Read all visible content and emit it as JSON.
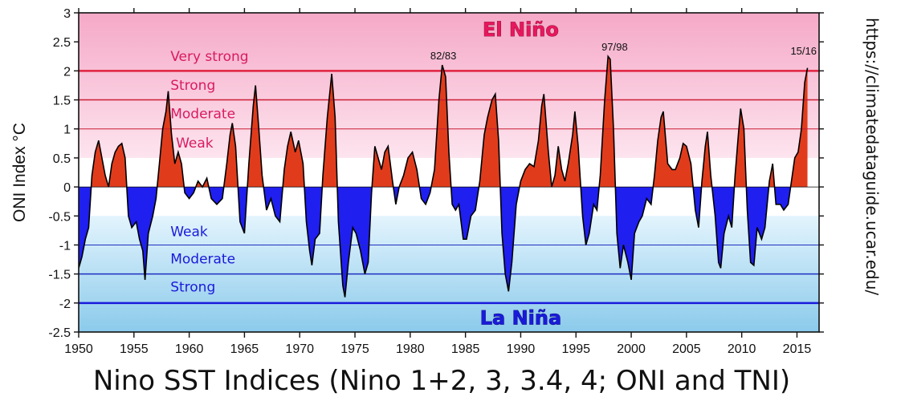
{
  "chart_data": {
    "type": "area",
    "title": "Nino SST Indices (Nino 1+2, 3, 3.4, 4; ONI and TNI)",
    "xlabel": "",
    "ylabel": "ONI Index  °C",
    "xlim": [
      1950,
      2017
    ],
    "ylim": [
      -2.5,
      3
    ],
    "xticks": [
      1950,
      1955,
      1960,
      1965,
      1970,
      1975,
      1980,
      1985,
      1990,
      1995,
      2000,
      2005,
      2010,
      2015
    ],
    "yticks": [
      3,
      2.5,
      2,
      1.5,
      1,
      0.5,
      0,
      -0.5,
      -1,
      -1.5,
      -2,
      -2.5
    ],
    "ytick_labels": [
      "3",
      "2.5",
      "2",
      "1.5",
      "1",
      "0.5",
      "0",
      "-0.5",
      "-1",
      "-1.5",
      "-2",
      "-2.5"
    ],
    "series": [
      {
        "name": "ONI",
        "positive_color": "#e03c1c",
        "negative_color": "#1f1ff0",
        "points": [
          [
            1950.0,
            -1.4
          ],
          [
            1950.3,
            -1.2
          ],
          [
            1950.6,
            -0.9
          ],
          [
            1950.9,
            -0.7
          ],
          [
            1951.2,
            0.2
          ],
          [
            1951.5,
            0.6
          ],
          [
            1951.8,
            0.8
          ],
          [
            1952.1,
            0.5
          ],
          [
            1952.4,
            0.2
          ],
          [
            1952.7,
            0.0
          ],
          [
            1953.0,
            0.4
          ],
          [
            1953.3,
            0.6
          ],
          [
            1953.6,
            0.7
          ],
          [
            1953.9,
            0.75
          ],
          [
            1954.2,
            0.5
          ],
          [
            1954.5,
            -0.5
          ],
          [
            1954.8,
            -0.7
          ],
          [
            1955.2,
            -0.6
          ],
          [
            1955.5,
            -0.9
          ],
          [
            1955.8,
            -1.1
          ],
          [
            1956.0,
            -1.6
          ],
          [
            1956.3,
            -0.8
          ],
          [
            1956.7,
            -0.5
          ],
          [
            1957.0,
            -0.2
          ],
          [
            1957.3,
            0.4
          ],
          [
            1957.6,
            1.0
          ],
          [
            1957.9,
            1.3
          ],
          [
            1958.1,
            1.65
          ],
          [
            1958.4,
            0.9
          ],
          [
            1958.7,
            0.4
          ],
          [
            1959.0,
            0.6
          ],
          [
            1959.3,
            0.4
          ],
          [
            1959.6,
            -0.1
          ],
          [
            1960.0,
            -0.2
          ],
          [
            1960.4,
            -0.1
          ],
          [
            1960.8,
            0.1
          ],
          [
            1961.2,
            0.0
          ],
          [
            1961.6,
            0.15
          ],
          [
            1962.0,
            -0.2
          ],
          [
            1962.5,
            -0.3
          ],
          [
            1963.0,
            -0.2
          ],
          [
            1963.4,
            0.4
          ],
          [
            1963.7,
            0.9
          ],
          [
            1963.9,
            1.1
          ],
          [
            1964.2,
            0.7
          ],
          [
            1964.6,
            -0.6
          ],
          [
            1965.0,
            -0.8
          ],
          [
            1965.4,
            0.4
          ],
          [
            1965.8,
            1.4
          ],
          [
            1966.0,
            1.75
          ],
          [
            1966.3,
            1.0
          ],
          [
            1966.6,
            0.2
          ],
          [
            1967.0,
            -0.4
          ],
          [
            1967.4,
            -0.2
          ],
          [
            1967.8,
            -0.5
          ],
          [
            1968.2,
            -0.6
          ],
          [
            1968.6,
            0.3
          ],
          [
            1968.9,
            0.7
          ],
          [
            1969.2,
            0.95
          ],
          [
            1969.6,
            0.6
          ],
          [
            1969.9,
            0.8
          ],
          [
            1970.3,
            0.4
          ],
          [
            1970.6,
            -0.6
          ],
          [
            1970.9,
            -1.1
          ],
          [
            1971.1,
            -1.35
          ],
          [
            1971.4,
            -0.9
          ],
          [
            1971.8,
            -0.8
          ],
          [
            1972.1,
            0.2
          ],
          [
            1972.5,
            1.2
          ],
          [
            1972.9,
            1.95
          ],
          [
            1973.2,
            1.2
          ],
          [
            1973.5,
            -0.6
          ],
          [
            1973.9,
            -1.7
          ],
          [
            1974.1,
            -1.9
          ],
          [
            1974.4,
            -1.3
          ],
          [
            1974.8,
            -0.7
          ],
          [
            1975.1,
            -0.8
          ],
          [
            1975.5,
            -1.1
          ],
          [
            1975.9,
            -1.5
          ],
          [
            1976.2,
            -1.3
          ],
          [
            1976.5,
            -0.1
          ],
          [
            1976.8,
            0.7
          ],
          [
            1977.1,
            0.5
          ],
          [
            1977.4,
            0.3
          ],
          [
            1977.7,
            0.6
          ],
          [
            1978.0,
            0.7
          ],
          [
            1978.4,
            0.1
          ],
          [
            1978.7,
            -0.3
          ],
          [
            1979.0,
            0.0
          ],
          [
            1979.4,
            0.2
          ],
          [
            1979.8,
            0.5
          ],
          [
            1980.2,
            0.6
          ],
          [
            1980.6,
            0.3
          ],
          [
            1981.0,
            -0.2
          ],
          [
            1981.4,
            -0.3
          ],
          [
            1981.8,
            -0.1
          ],
          [
            1982.2,
            0.3
          ],
          [
            1982.6,
            1.5
          ],
          [
            1982.9,
            2.1
          ],
          [
            1983.2,
            1.9
          ],
          [
            1983.5,
            0.6
          ],
          [
            1983.8,
            -0.3
          ],
          [
            1984.1,
            -0.4
          ],
          [
            1984.4,
            -0.3
          ],
          [
            1984.8,
            -0.9
          ],
          [
            1985.1,
            -0.9
          ],
          [
            1985.5,
            -0.5
          ],
          [
            1985.9,
            -0.4
          ],
          [
            1986.3,
            0.1
          ],
          [
            1986.7,
            0.9
          ],
          [
            1987.0,
            1.2
          ],
          [
            1987.4,
            1.5
          ],
          [
            1987.7,
            1.6
          ],
          [
            1988.0,
            0.8
          ],
          [
            1988.3,
            -0.8
          ],
          [
            1988.6,
            -1.5
          ],
          [
            1988.9,
            -1.8
          ],
          [
            1989.2,
            -1.3
          ],
          [
            1989.6,
            -0.3
          ],
          [
            1990.0,
            0.1
          ],
          [
            1990.4,
            0.3
          ],
          [
            1990.8,
            0.4
          ],
          [
            1991.2,
            0.35
          ],
          [
            1991.6,
            0.8
          ],
          [
            1991.9,
            1.4
          ],
          [
            1992.1,
            1.6
          ],
          [
            1992.5,
            0.6
          ],
          [
            1992.8,
            0.0
          ],
          [
            1993.1,
            0.2
          ],
          [
            1993.4,
            0.7
          ],
          [
            1993.7,
            0.3
          ],
          [
            1994.0,
            0.1
          ],
          [
            1994.3,
            0.4
          ],
          [
            1994.7,
            0.9
          ],
          [
            1994.9,
            1.3
          ],
          [
            1995.2,
            0.7
          ],
          [
            1995.6,
            -0.5
          ],
          [
            1995.9,
            -1.0
          ],
          [
            1996.2,
            -0.8
          ],
          [
            1996.6,
            -0.3
          ],
          [
            1996.9,
            -0.4
          ],
          [
            1997.2,
            0.2
          ],
          [
            1997.6,
            1.5
          ],
          [
            1997.9,
            2.25
          ],
          [
            1998.1,
            2.2
          ],
          [
            1998.4,
            1.0
          ],
          [
            1998.7,
            -0.8
          ],
          [
            1999.0,
            -1.4
          ],
          [
            1999.3,
            -1.0
          ],
          [
            1999.7,
            -1.3
          ],
          [
            2000.0,
            -1.6
          ],
          [
            2000.3,
            -0.8
          ],
          [
            2000.7,
            -0.6
          ],
          [
            2001.0,
            -0.5
          ],
          [
            2001.4,
            -0.2
          ],
          [
            2001.8,
            -0.3
          ],
          [
            2002.1,
            0.2
          ],
          [
            2002.4,
            0.8
          ],
          [
            2002.7,
            1.2
          ],
          [
            2002.9,
            1.3
          ],
          [
            2003.3,
            0.4
          ],
          [
            2003.7,
            0.3
          ],
          [
            2004.0,
            0.3
          ],
          [
            2004.4,
            0.5
          ],
          [
            2004.7,
            0.75
          ],
          [
            2005.0,
            0.7
          ],
          [
            2005.4,
            0.4
          ],
          [
            2005.8,
            -0.4
          ],
          [
            2006.1,
            -0.7
          ],
          [
            2006.4,
            0.1
          ],
          [
            2006.7,
            0.7
          ],
          [
            2006.9,
            0.95
          ],
          [
            2007.2,
            0.2
          ],
          [
            2007.6,
            -0.5
          ],
          [
            2007.9,
            -1.3
          ],
          [
            2008.1,
            -1.4
          ],
          [
            2008.4,
            -0.8
          ],
          [
            2008.8,
            -0.5
          ],
          [
            2009.1,
            -0.7
          ],
          [
            2009.4,
            0.2
          ],
          [
            2009.7,
            0.9
          ],
          [
            2009.9,
            1.35
          ],
          [
            2010.2,
            1.0
          ],
          [
            2010.5,
            -0.4
          ],
          [
            2010.8,
            -1.3
          ],
          [
            2011.1,
            -1.35
          ],
          [
            2011.4,
            -0.7
          ],
          [
            2011.8,
            -0.9
          ],
          [
            2012.1,
            -0.7
          ],
          [
            2012.5,
            0.1
          ],
          [
            2012.8,
            0.4
          ],
          [
            2013.1,
            -0.3
          ],
          [
            2013.5,
            -0.3
          ],
          [
            2013.8,
            -0.4
          ],
          [
            2014.2,
            -0.3
          ],
          [
            2014.5,
            0.1
          ],
          [
            2014.8,
            0.5
          ],
          [
            2015.1,
            0.6
          ],
          [
            2015.4,
            1.0
          ],
          [
            2015.7,
            1.8
          ],
          [
            2015.95,
            2.05
          ]
        ]
      }
    ],
    "thresholds": [
      {
        "value": 2.0,
        "color": "#e0213f",
        "width": 2.5
      },
      {
        "value": 1.5,
        "color": "#c91c36",
        "width": 1.5
      },
      {
        "value": 1.0,
        "color": "#c91c36",
        "width": 1.0
      },
      {
        "value": -1.0,
        "color": "#1f2fc0",
        "width": 1.0
      },
      {
        "value": -1.5,
        "color": "#1f2fc0",
        "width": 1.5
      },
      {
        "value": -2.0,
        "color": "#1a1adb",
        "width": 2.5
      }
    ],
    "band_labels": [
      {
        "text": "Very strong",
        "x": 1958.3,
        "y": 2.17,
        "side": "el"
      },
      {
        "text": "Strong",
        "x": 1958.3,
        "y": 1.67,
        "side": "el"
      },
      {
        "text": "Moderate",
        "x": 1958.3,
        "y": 1.18,
        "side": "el"
      },
      {
        "text": "Weak",
        "x": 1958.8,
        "y": 0.68,
        "side": "el"
      },
      {
        "text": "Weak",
        "x": 1958.3,
        "y": -0.85,
        "side": "la"
      },
      {
        "text": "Moderate",
        "x": 1958.3,
        "y": -1.32,
        "side": "la"
      },
      {
        "text": "Strong",
        "x": 1958.3,
        "y": -1.8,
        "side": "la"
      }
    ],
    "event_labels": [
      {
        "text": "82/83",
        "x": 1983.0,
        "y": 2.2
      },
      {
        "text": "97/98",
        "x": 1998.5,
        "y": 2.35
      },
      {
        "text": "15/16",
        "x": 2015.6,
        "y": 2.28
      }
    ],
    "region_labels": [
      {
        "text": "El Niño",
        "x": 1990.0,
        "y": 2.6,
        "side": "el"
      },
      {
        "text": "La Niña",
        "x": 1990.0,
        "y": -2.37,
        "side": "la"
      }
    ]
  },
  "source_text": "https://climatedataguide.ucar.edu/",
  "colors": {
    "el_top": "#f5a9c7",
    "el_bottom": "#fde4ee",
    "la_top": "#e3f4fd",
    "la_bottom": "#8bcaeb"
  }
}
